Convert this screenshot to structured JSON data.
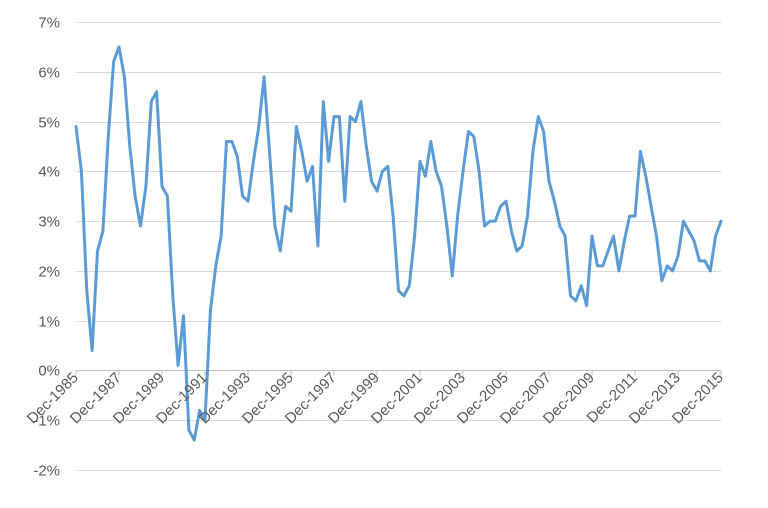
{
  "chart_data": {
    "type": "line",
    "title": "",
    "xlabel": "",
    "ylabel": "",
    "ylim": [
      -0.02,
      0.07
    ],
    "y_ticks": [
      {
        "value": -0.02,
        "label": "-2%"
      },
      {
        "value": -0.01,
        "label": "-1%"
      },
      {
        "value": 0.0,
        "label": "0%"
      },
      {
        "value": 0.01,
        "label": "1%"
      },
      {
        "value": 0.02,
        "label": "2%"
      },
      {
        "value": 0.03,
        "label": "3%"
      },
      {
        "value": 0.04,
        "label": "4%"
      },
      {
        "value": 0.05,
        "label": "5%"
      },
      {
        "value": 0.06,
        "label": "6%"
      },
      {
        "value": 0.07,
        "label": "7%"
      }
    ],
    "x_range": [
      "1985-12",
      "2015-12"
    ],
    "x_ticks": [
      {
        "date": "1985-12",
        "label": "Dec-1985"
      },
      {
        "date": "1987-12",
        "label": "Dec-1987"
      },
      {
        "date": "1989-12",
        "label": "Dec-1989"
      },
      {
        "date": "1991-12",
        "label": "Dec-1991"
      },
      {
        "date": "1993-12",
        "label": "Dec-1993"
      },
      {
        "date": "1995-12",
        "label": "Dec-1995"
      },
      {
        "date": "1997-12",
        "label": "Dec-1997"
      },
      {
        "date": "1999-12",
        "label": "Dec-1999"
      },
      {
        "date": "2001-12",
        "label": "Dec-2001"
      },
      {
        "date": "2003-12",
        "label": "Dec-2003"
      },
      {
        "date": "2005-12",
        "label": "Dec-2005"
      },
      {
        "date": "2007-12",
        "label": "Dec-2007"
      },
      {
        "date": "2009-12",
        "label": "Dec-2009"
      },
      {
        "date": "2011-12",
        "label": "Dec-2011"
      },
      {
        "date": "2013-12",
        "label": "Dec-2013"
      },
      {
        "date": "2015-12",
        "label": "Dec-2015"
      }
    ],
    "grid": "horizontal",
    "legend": "none",
    "series": [
      {
        "color": "#5b9bd5",
        "x": [
          "1985-12",
          "1986-03",
          "1986-06",
          "1986-09",
          "1986-12",
          "1987-03",
          "1987-06",
          "1987-09",
          "1987-12",
          "1988-03",
          "1988-06",
          "1988-09",
          "1988-12",
          "1989-03",
          "1989-06",
          "1989-09",
          "1989-12",
          "1990-03",
          "1990-06",
          "1990-09",
          "1990-12",
          "1991-03",
          "1991-06",
          "1991-09",
          "1991-12",
          "1992-03",
          "1992-06",
          "1992-09",
          "1992-12",
          "1993-03",
          "1993-06",
          "1993-09",
          "1993-12",
          "1994-03",
          "1994-06",
          "1994-09",
          "1994-12",
          "1995-03",
          "1995-06",
          "1995-09",
          "1995-12",
          "1996-03",
          "1996-06",
          "1996-09",
          "1996-12",
          "1997-03",
          "1997-06",
          "1997-09",
          "1997-12",
          "1998-03",
          "1998-06",
          "1998-09",
          "1998-12",
          "1999-03",
          "1999-06",
          "1999-09",
          "1999-12",
          "2000-03",
          "2000-06",
          "2000-09",
          "2000-12",
          "2001-03",
          "2001-06",
          "2001-09",
          "2001-12",
          "2002-03",
          "2002-06",
          "2002-09",
          "2002-12",
          "2003-03",
          "2003-06",
          "2003-09",
          "2003-12",
          "2004-03",
          "2004-06",
          "2004-09",
          "2004-12",
          "2005-03",
          "2005-06",
          "2005-09",
          "2005-12",
          "2006-03",
          "2006-06",
          "2006-09",
          "2006-12",
          "2007-03",
          "2007-06",
          "2007-09",
          "2007-12",
          "2008-03",
          "2008-06",
          "2008-09",
          "2008-12",
          "2009-03",
          "2009-06",
          "2009-09",
          "2009-12",
          "2010-03",
          "2010-06",
          "2010-09",
          "2010-12",
          "2011-03",
          "2011-06",
          "2011-09",
          "2011-12",
          "2012-03",
          "2012-06",
          "2012-09",
          "2012-12",
          "2013-03",
          "2013-06",
          "2013-09",
          "2013-12",
          "2014-03",
          "2014-06",
          "2014-09",
          "2014-12",
          "2015-03",
          "2015-06",
          "2015-09",
          "2015-12"
        ],
        "y": [
          0.049,
          0.04,
          0.016,
          0.004,
          0.024,
          0.028,
          0.047,
          0.062,
          0.065,
          0.059,
          0.045,
          0.035,
          0.029,
          0.037,
          0.054,
          0.056,
          0.037,
          0.035,
          0.015,
          0.001,
          0.011,
          -0.012,
          -0.014,
          -0.008,
          -0.01,
          0.012,
          0.021,
          0.027,
          0.046,
          0.046,
          0.043,
          0.035,
          0.034,
          0.042,
          0.049,
          0.059,
          0.044,
          0.029,
          0.024,
          0.033,
          0.032,
          0.049,
          0.044,
          0.038,
          0.041,
          0.025,
          0.054,
          0.042,
          0.051,
          0.051,
          0.034,
          0.051,
          0.05,
          0.054,
          0.045,
          0.038,
          0.036,
          0.04,
          0.041,
          0.031,
          0.016,
          0.015,
          0.017,
          0.027,
          0.042,
          0.039,
          0.046,
          0.04,
          0.037,
          0.029,
          0.019,
          0.031,
          0.04,
          0.048,
          0.047,
          0.04,
          0.029,
          0.03,
          0.03,
          0.033,
          0.034,
          0.028,
          0.024,
          0.025,
          0.031,
          0.044,
          0.051,
          0.048,
          0.038,
          0.034,
          0.029,
          0.027,
          0.015,
          0.014,
          0.017,
          0.013,
          0.027,
          0.021,
          0.021,
          0.024,
          0.027,
          0.02,
          0.026,
          0.031,
          0.031,
          0.044,
          0.039,
          0.033,
          0.027,
          0.018,
          0.021,
          0.02,
          0.023,
          0.03,
          0.028,
          0.026,
          0.022,
          0.022,
          0.02,
          0.027,
          0.03
        ]
      }
    ]
  }
}
